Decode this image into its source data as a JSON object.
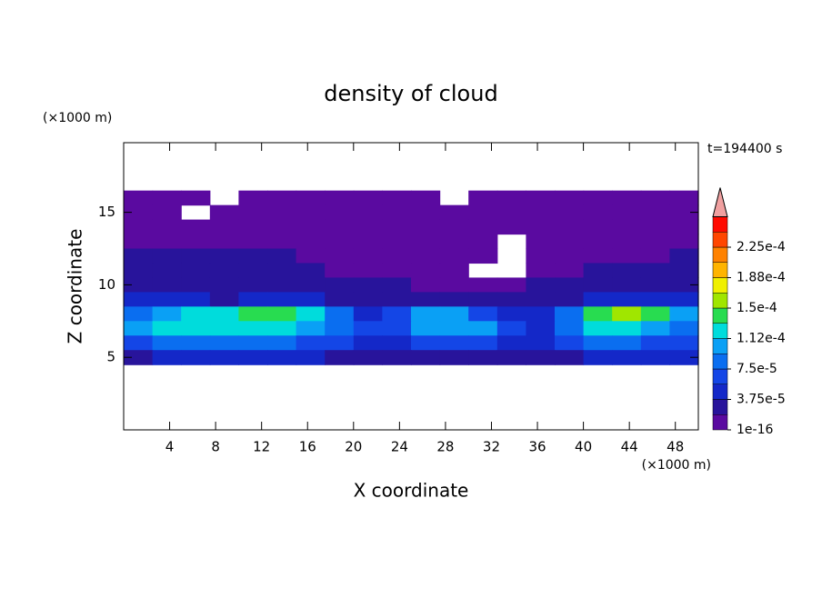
{
  "chart_data": {
    "type": "contourf",
    "title": "density of cloud",
    "xlabel": "X coordinate",
    "ylabel": "Z coordinate",
    "xunit": "(×1000 m)",
    "yunit": "(×1000 m)",
    "time_label": "t=194400 s",
    "xlim": [
      0,
      50
    ],
    "ylim": [
      0,
      19.8
    ],
    "xticks": [
      4,
      8,
      12,
      16,
      20,
      24,
      28,
      32,
      36,
      40,
      44,
      48
    ],
    "yticks": [
      5,
      10,
      15
    ],
    "x": [
      1.25,
      3.75,
      6.25,
      8.75,
      11.25,
      13.75,
      16.25,
      18.75,
      21.25,
      23.75,
      26.25,
      28.75,
      31.25,
      33.75,
      36.25,
      38.75,
      41.25,
      43.75,
      46.25,
      48.75
    ],
    "y": [
      16,
      15,
      14,
      13,
      12,
      11,
      10,
      9,
      8,
      7,
      6,
      5
    ],
    "values": [
      [
        1e-05,
        1e-05,
        1e-05,
        null,
        1e-05,
        1e-05,
        1e-05,
        1e-05,
        1e-05,
        1e-05,
        1e-05,
        null,
        1e-05,
        1e-05,
        1e-05,
        1e-05,
        1e-05,
        1e-05,
        1e-05,
        1e-05
      ],
      [
        1e-05,
        1e-05,
        null,
        1e-05,
        1e-05,
        1e-05,
        1e-05,
        1e-05,
        1e-05,
        1e-05,
        1e-05,
        1e-05,
        1e-05,
        1e-05,
        1e-05,
        1e-05,
        1e-05,
        1e-05,
        1e-05,
        1e-05
      ],
      [
        1e-05,
        1e-05,
        1e-05,
        1e-05,
        1e-05,
        1e-05,
        1e-05,
        1e-05,
        1e-05,
        1e-05,
        1e-05,
        1e-05,
        1e-05,
        1e-05,
        1e-05,
        1e-05,
        1e-05,
        1e-05,
        1e-05,
        1e-05
      ],
      [
        1e-05,
        1e-05,
        1e-05,
        1e-05,
        1e-05,
        1e-05,
        1e-05,
        1e-05,
        1e-05,
        1e-05,
        1e-05,
        1e-05,
        1e-05,
        null,
        1e-05,
        1e-05,
        1e-05,
        1e-05,
        1e-05,
        1e-05
      ],
      [
        3e-05,
        3e-05,
        3e-05,
        3e-05,
        3e-05,
        3e-05,
        1e-05,
        1e-05,
        1e-05,
        1e-05,
        1e-05,
        1e-05,
        1e-05,
        null,
        1e-05,
        1e-05,
        1e-05,
        1e-05,
        1e-05,
        3e-05
      ],
      [
        3e-05,
        3e-05,
        3e-05,
        3e-05,
        3e-05,
        3e-05,
        3e-05,
        1e-05,
        1e-05,
        1e-05,
        1e-05,
        1e-05,
        null,
        null,
        1e-05,
        1e-05,
        3e-05,
        3e-05,
        3e-05,
        3e-05
      ],
      [
        3e-05,
        3e-05,
        3e-05,
        3e-05,
        3e-05,
        3e-05,
        3e-05,
        3e-05,
        3e-05,
        3e-05,
        1e-05,
        1e-05,
        1e-05,
        1e-05,
        3e-05,
        3e-05,
        3e-05,
        3e-05,
        3e-05,
        3e-05
      ],
      [
        5e-05,
        5e-05,
        5e-05,
        3e-05,
        5e-05,
        5e-05,
        5e-05,
        3e-05,
        3e-05,
        3e-05,
        3e-05,
        3e-05,
        3e-05,
        3e-05,
        3e-05,
        3e-05,
        5e-05,
        5e-05,
        5e-05,
        5e-05
      ],
      [
        8.5e-05,
        0.0001,
        0.00012,
        0.00012,
        0.00014,
        0.00014,
        0.00012,
        8.5e-05,
        5e-05,
        6.5e-05,
        0.0001,
        0.0001,
        6.5e-05,
        5e-05,
        5e-05,
        8.5e-05,
        0.00014,
        0.00016,
        0.00014,
        0.0001
      ],
      [
        0.0001,
        0.00012,
        0.00012,
        0.00012,
        0.00012,
        0.00012,
        0.0001,
        8.5e-05,
        6.5e-05,
        6.5e-05,
        0.0001,
        0.0001,
        0.0001,
        6.5e-05,
        5e-05,
        8.5e-05,
        0.00012,
        0.00012,
        0.0001,
        8.5e-05
      ],
      [
        6.5e-05,
        8.5e-05,
        8.5e-05,
        8.5e-05,
        8.5e-05,
        8.5e-05,
        6.5e-05,
        6.5e-05,
        5e-05,
        5e-05,
        6.5e-05,
        6.5e-05,
        6.5e-05,
        5e-05,
        5e-05,
        6.5e-05,
        8.5e-05,
        8.5e-05,
        6.5e-05,
        6.5e-05
      ],
      [
        3e-05,
        5e-05,
        5e-05,
        5e-05,
        5e-05,
        5e-05,
        5e-05,
        3e-05,
        3e-05,
        3e-05,
        3e-05,
        3e-05,
        3e-05,
        3e-05,
        3e-05,
        3e-05,
        5e-05,
        5e-05,
        5e-05,
        5e-05
      ]
    ],
    "levels": [
      1e-16,
      1.875e-05,
      3.75e-05,
      5.625e-05,
      7.5e-05,
      9.375e-05,
      0.0001125,
      0.00013125,
      0.00015,
      0.00016875,
      0.0001875,
      0.00020625,
      0.000225,
      0.00024375,
      0.0002625
    ],
    "colors": [
      "#5a0aa0",
      "#28149b",
      "#1428c8",
      "#1446e6",
      "#0a6ef0",
      "#0aa0f5",
      "#00dcdc",
      "#28dc50",
      "#a0e600",
      "#f0f000",
      "#ffb400",
      "#ff8200",
      "#ff4600",
      "#ff0a00"
    ],
    "extend_color": "#f0a0a0",
    "cticks": [
      1e-16,
      {
        "value": 3.75e-05,
        "label": "3.75e-5"
      },
      {
        "value": 7.5e-05,
        "label": "7.5e-5"
      },
      {
        "value": 0.0001125,
        "label": "1.12e-4"
      },
      {
        "value": 0.00015,
        "label": "1.5e-4"
      },
      {
        "value": 0.0001875,
        "label": "1.88e-4"
      },
      {
        "value": 0.000225,
        "label": "2.25e-4"
      }
    ]
  }
}
